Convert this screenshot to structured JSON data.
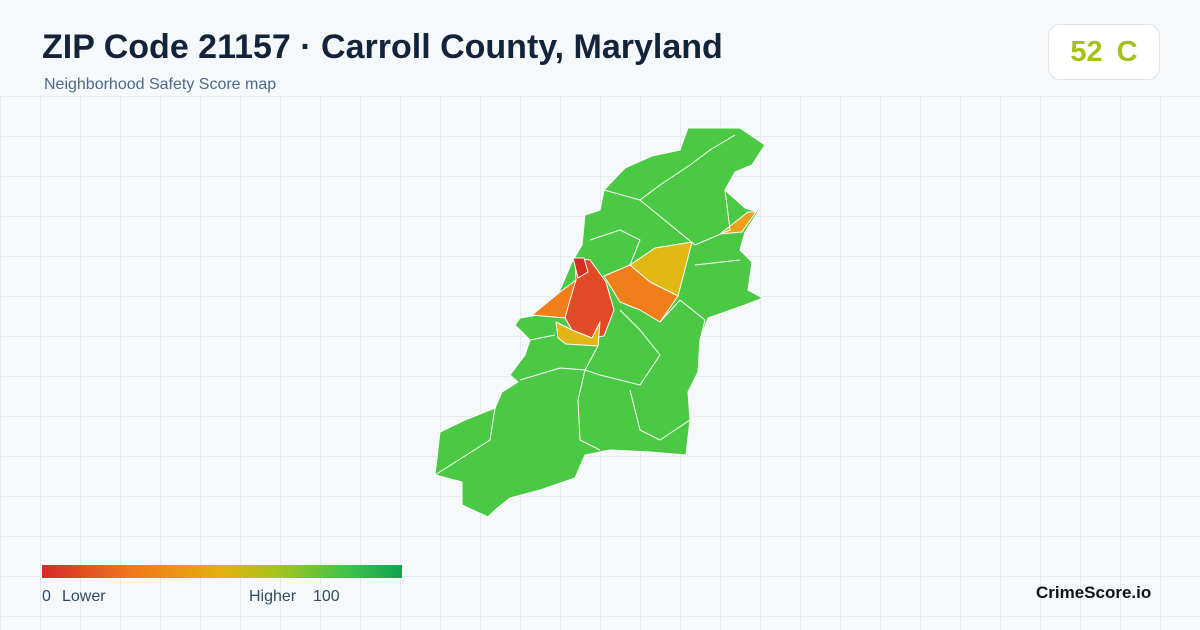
{
  "header": {
    "title": "ZIP Code 21157 · Carroll County, Maryland",
    "subtitle": "Neighborhood Safety Score map"
  },
  "score": {
    "value": 52,
    "grade": "C"
  },
  "legend": {
    "min": 0,
    "min_label": "Lower",
    "max_label": "Higher",
    "max": 100
  },
  "brand": "CrimeScore.io"
}
